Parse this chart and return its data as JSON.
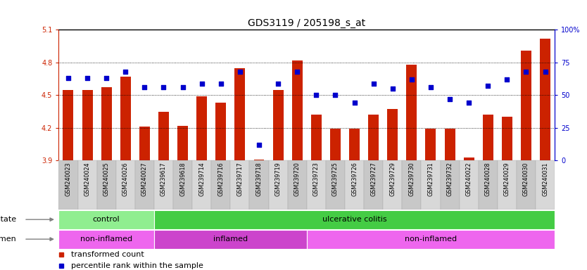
{
  "title": "GDS3119 / 205198_s_at",
  "samples": [
    "GSM240023",
    "GSM240024",
    "GSM240025",
    "GSM240026",
    "GSM240027",
    "GSM239617",
    "GSM239618",
    "GSM239714",
    "GSM239716",
    "GSM239717",
    "GSM239718",
    "GSM239719",
    "GSM239720",
    "GSM239723",
    "GSM239725",
    "GSM239726",
    "GSM239727",
    "GSM239729",
    "GSM239730",
    "GSM239731",
    "GSM239732",
    "GSM240022",
    "GSM240028",
    "GSM240029",
    "GSM240030",
    "GSM240031"
  ],
  "bar_values": [
    4.55,
    4.55,
    4.57,
    4.67,
    4.21,
    4.35,
    4.22,
    4.49,
    4.43,
    4.75,
    3.91,
    4.55,
    4.82,
    4.32,
    4.19,
    4.19,
    4.32,
    4.37,
    4.78,
    4.19,
    4.19,
    3.93,
    4.32,
    4.3,
    4.91,
    5.02
  ],
  "dot_values": [
    63,
    63,
    63,
    68,
    56,
    56,
    56,
    59,
    59,
    68,
    12,
    59,
    68,
    50,
    50,
    44,
    59,
    55,
    62,
    56,
    47,
    44,
    57,
    62,
    68,
    68
  ],
  "ylim_left": [
    3.9,
    5.1
  ],
  "ylim_right": [
    0,
    100
  ],
  "yticks_left": [
    3.9,
    4.2,
    4.5,
    4.8,
    5.1
  ],
  "yticks_right": [
    0,
    25,
    50,
    75,
    100
  ],
  "bar_color": "#CC2200",
  "dot_color": "#0000CC",
  "bg_color": "#FFFFFF",
  "tick_bg_color": "#D8D8D8",
  "disease_state_groups": [
    {
      "label": "control",
      "start": 0,
      "end": 5,
      "color": "#90EE90"
    },
    {
      "label": "ulcerative colitis",
      "start": 5,
      "end": 26,
      "color": "#44CC44"
    }
  ],
  "specimen_groups": [
    {
      "label": "non-inflamed",
      "start": 0,
      "end": 5,
      "color": "#EE66EE"
    },
    {
      "label": "inflamed",
      "start": 5,
      "end": 13,
      "color": "#CC44CC"
    },
    {
      "label": "non-inflamed",
      "start": 13,
      "end": 26,
      "color": "#EE66EE"
    }
  ],
  "legend_items": [
    {
      "label": "transformed count",
      "color": "#CC2200"
    },
    {
      "label": "percentile rank within the sample",
      "color": "#0000CC"
    }
  ],
  "title_fontsize": 10,
  "tick_fontsize": 7,
  "label_fontsize": 8,
  "bar_width": 0.55
}
